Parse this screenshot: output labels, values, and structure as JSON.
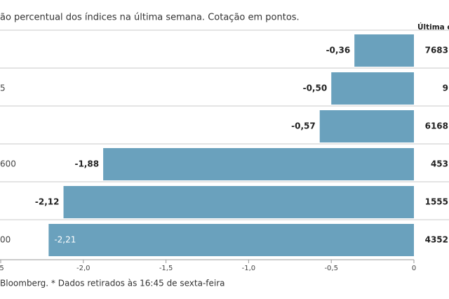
{
  "chart_data": {
    "type": "bar",
    "orientation": "horizontal",
    "title": "ão percentual dos índices na última semana. Cotação em pontos.",
    "categories": [
      null,
      "5",
      null,
      "600",
      null,
      "00"
    ],
    "values": [
      -0.36,
      -0.5,
      -0.57,
      -1.88,
      -2.12,
      -2.21
    ],
    "value_labels": [
      "-0,36",
      "-0,50",
      "-0,57",
      "-1,88",
      "-2,12",
      "-2,21"
    ],
    "color": "#6aa1bd",
    "xlim": [
      -2.5,
      0
    ],
    "xticks": [
      {
        "value": -2.5,
        "label": ",5"
      },
      {
        "value": -2.0,
        "label": "-2,0"
      },
      {
        "value": -1.5,
        "label": "-1,5"
      },
      {
        "value": -1.0,
        "label": "-1,0"
      },
      {
        "value": -0.5,
        "label": "-0,5"
      },
      0
    ],
    "column_header": "Última c",
    "column_values": [
      "7683",
      "9",
      "6168",
      "453",
      "1555",
      "4352"
    ],
    "source": "Bloomberg.  * Dados retirados às 16:45 de sexta-feira"
  }
}
